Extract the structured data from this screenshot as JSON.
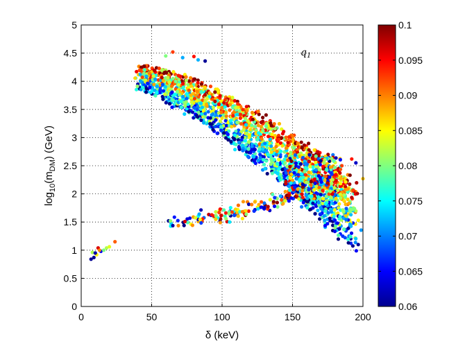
{
  "chart_data": {
    "type": "scatter",
    "title": "",
    "xlabel": "δ (keV)",
    "ylabel_parts": {
      "base": "log",
      "sub1": "10",
      "mid": "(m",
      "sub2": "DM",
      "end": ") (GeV)"
    },
    "xlim": [
      0,
      200
    ],
    "ylim": [
      0,
      5
    ],
    "x_ticks": [
      "0",
      "50",
      "100",
      "150",
      "200"
    ],
    "y_ticks": [
      "0",
      "0.5",
      "1",
      "1.5",
      "2",
      "2.5",
      "3",
      "3.5",
      "4",
      "4.5",
      "5"
    ],
    "grid": true,
    "annotation": "q1",
    "colorbar": {
      "range": [
        0.06,
        0.1
      ],
      "ticks": [
        "0.06",
        "0.065",
        "0.07",
        "0.075",
        "0.08",
        "0.085",
        "0.09",
        "0.095",
        "0.1"
      ],
      "colormap": "jet"
    },
    "clusters": [
      {
        "name": "small-cluster",
        "points": [
          [
            7,
            0.84
          ],
          [
            9,
            0.87
          ],
          [
            8,
            0.96
          ],
          [
            11,
            0.92
          ],
          [
            12,
            1.04
          ],
          [
            14,
            0.98
          ],
          [
            16,
            1.0
          ],
          [
            18,
            1.04
          ],
          [
            20,
            1.06
          ],
          [
            24,
            1.15
          ],
          [
            10,
            0.95
          ],
          [
            13,
            1.0
          ]
        ]
      },
      {
        "name": "lower-arc",
        "x_range": [
          62,
          180
        ],
        "y_center": [
          1.48,
          2.2
        ],
        "spread": 0.07,
        "count": 180
      },
      {
        "name": "upper-band",
        "x_range": [
          40,
          195
        ],
        "y_top": [
          4.3,
          2.2
        ],
        "y_thickness": 0.45,
        "count": 1800
      },
      {
        "name": "high-mass-outliers",
        "points": [
          [
            65,
            4.52
          ],
          [
            72,
            4.42
          ],
          [
            80,
            4.44
          ],
          [
            83,
            4.38
          ],
          [
            88,
            4.36
          ],
          [
            60,
            4.45
          ],
          [
            200,
            2.27
          ],
          [
            195,
            2.55
          ],
          [
            192,
            2.62
          ],
          [
            185,
            2.5
          ]
        ]
      }
    ]
  }
}
